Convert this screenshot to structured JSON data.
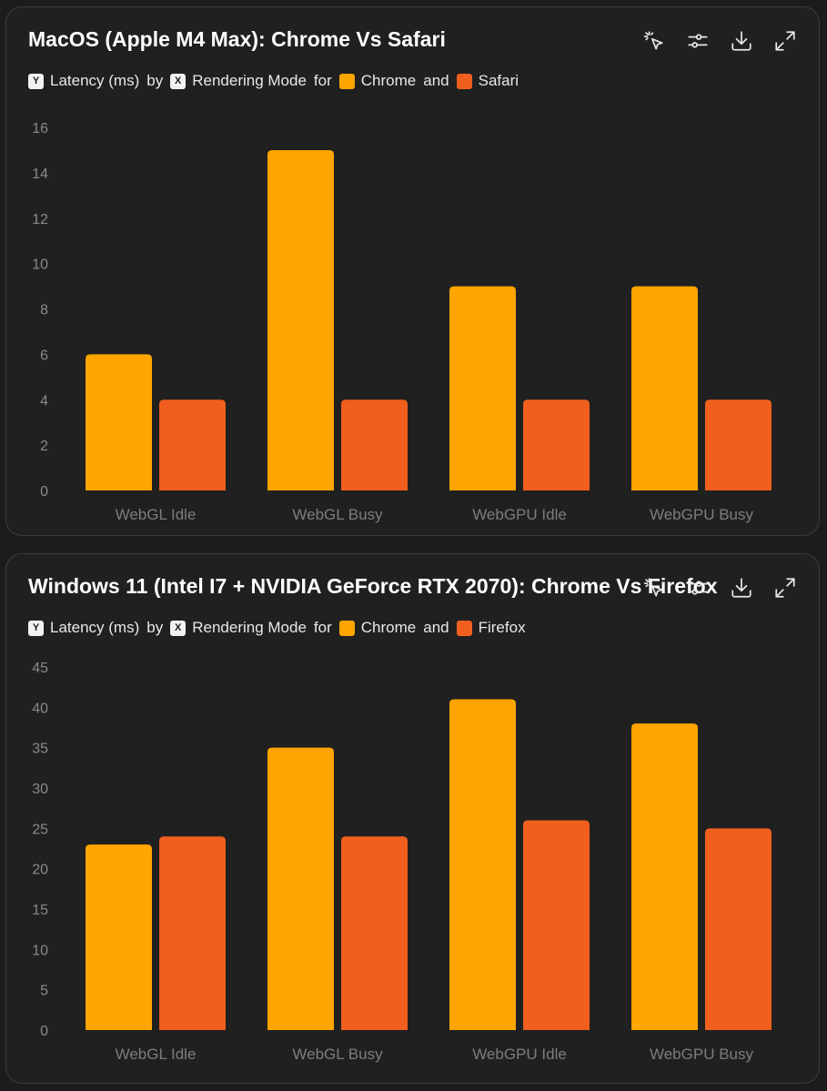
{
  "colors": {
    "series_a": "#FFA500",
    "series_b": "#F05F1E",
    "background": "#202020",
    "border": "#3c3c3c"
  },
  "toolbar": {
    "icons": [
      "select-pointer-icon",
      "sliders-icon",
      "download-icon",
      "expand-icon"
    ]
  },
  "charts": [
    {
      "title": "MacOS (Apple M4 Max): Chrome Vs Safari",
      "subtitle": {
        "y_badge": "Y",
        "y_label": "Latency (ms)",
        "by": "by",
        "x_badge": "X",
        "x_label": "Rendering Mode",
        "for": "for",
        "series_a": "Chrome",
        "and": "and",
        "series_b": "Safari"
      }
    },
    {
      "title": "Windows 11 (Intel I7 + NVIDIA GeForce RTX 2070): Chrome Vs Firefox",
      "subtitle": {
        "y_badge": "Y",
        "y_label": "Latency (ms)",
        "by": "by",
        "x_badge": "X",
        "x_label": "Rendering Mode",
        "for": "for",
        "series_a": "Chrome",
        "and": "and",
        "series_b": "Firefox"
      }
    }
  ],
  "chart_data": [
    {
      "type": "bar",
      "title": "MacOS (Apple M4 Max): Chrome Vs Safari",
      "xlabel": "Rendering Mode",
      "ylabel": "Latency (ms)",
      "categories": [
        "WebGL Idle",
        "WebGL Busy",
        "WebGPU Idle",
        "WebGPU Busy"
      ],
      "series": [
        {
          "name": "Chrome",
          "values": [
            6,
            15,
            9,
            9
          ]
        },
        {
          "name": "Safari",
          "values": [
            4,
            4,
            4,
            4
          ]
        }
      ],
      "ylim": [
        0,
        16
      ],
      "yticks": [
        0,
        2,
        4,
        6,
        8,
        10,
        12,
        14,
        16
      ],
      "grid": false,
      "legend": "top-left"
    },
    {
      "type": "bar",
      "title": "Windows 11 (Intel I7 + NVIDIA GeForce RTX 2070): Chrome Vs Firefox",
      "xlabel": "Rendering Mode",
      "ylabel": "Latency (ms)",
      "categories": [
        "WebGL Idle",
        "WebGL Busy",
        "WebGPU Idle",
        "WebGPU Busy"
      ],
      "series": [
        {
          "name": "Chrome",
          "values": [
            23,
            35,
            41,
            38
          ]
        },
        {
          "name": "Firefox",
          "values": [
            24,
            24,
            26,
            25
          ]
        }
      ],
      "ylim": [
        0,
        45
      ],
      "yticks": [
        0,
        5,
        10,
        15,
        20,
        25,
        30,
        35,
        40,
        45
      ],
      "grid": false,
      "legend": "top-left"
    }
  ]
}
